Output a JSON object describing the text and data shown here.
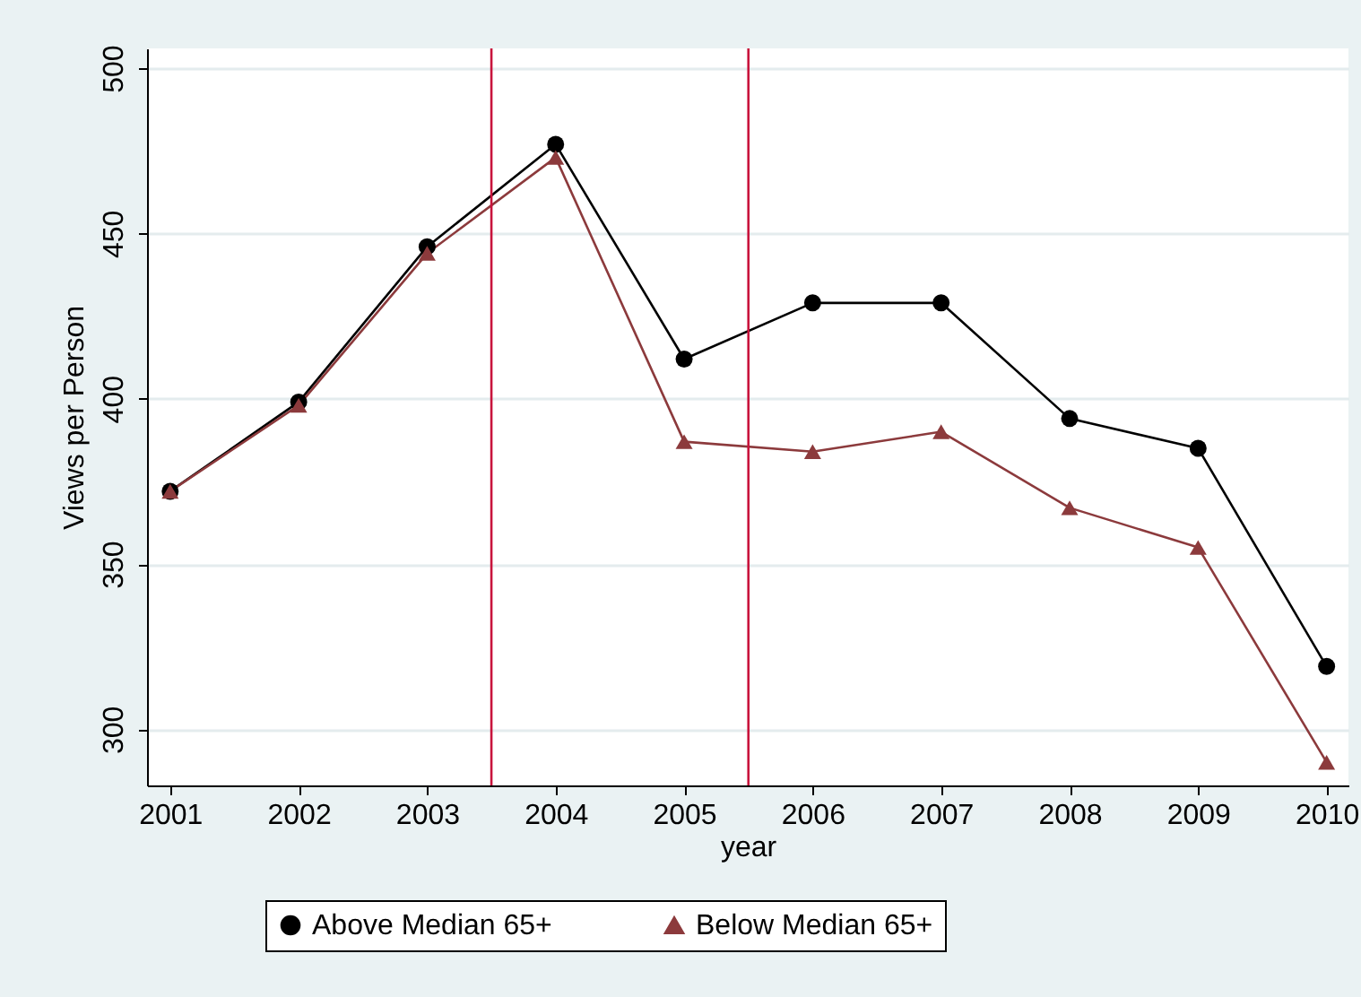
{
  "chart_data": {
    "type": "line",
    "xlabel": "year",
    "ylabel": "Views per Person",
    "x": [
      2001,
      2002,
      2003,
      2004,
      2005,
      2006,
      2007,
      2008,
      2009,
      2010
    ],
    "series": [
      {
        "name": "Above Median 65+",
        "color": "#000000",
        "marker": "circle",
        "values": [
          372,
          399,
          446,
          477,
          412,
          429,
          429,
          394,
          385,
          319
        ]
      },
      {
        "name": "Below Median 65+",
        "color": "#8c3a3c",
        "marker": "triangle",
        "values": [
          372,
          398,
          444,
          473,
          387,
          384,
          390,
          367,
          355,
          290
        ]
      }
    ],
    "xlim": [
      2000.82,
      2010.17
    ],
    "xticks": [
      2001,
      2002,
      2003,
      2004,
      2005,
      2006,
      2007,
      2008,
      2009,
      2010
    ],
    "ylim": [
      283,
      506
    ],
    "yticks": [
      300,
      350,
      400,
      450,
      500
    ],
    "ref_lines": [
      {
        "axis": "x",
        "value": 2003.5,
        "color": "#c8143c"
      },
      {
        "axis": "x",
        "value": 2005.5,
        "color": "#c8143c"
      }
    ],
    "grid": "y",
    "legend": "bottom",
    "line_style": "solid"
  }
}
